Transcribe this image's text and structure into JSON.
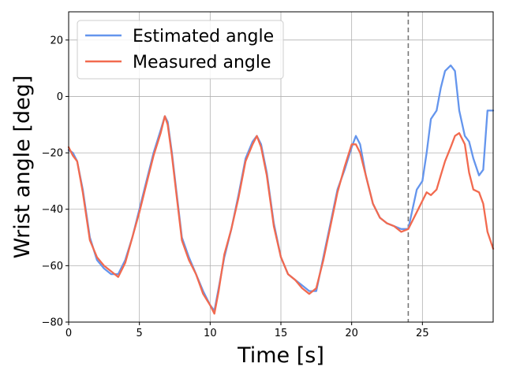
{
  "chart_data": {
    "type": "line",
    "xlabel": "Time [s]",
    "ylabel": "Wrist angle [deg]",
    "xlim": [
      0,
      30
    ],
    "ylim": [
      -80,
      30
    ],
    "xticks": [
      0,
      5,
      10,
      15,
      20,
      25
    ],
    "yticks": [
      -80,
      -60,
      -40,
      -20,
      0,
      20
    ],
    "grid": true,
    "legend_position": "top-left",
    "vline": {
      "x": 24,
      "style": "dashed",
      "color": "#777777"
    },
    "series": [
      {
        "name": "Estimated angle",
        "color": "#6495ED",
        "x": [
          0,
          0.3,
          0.6,
          1.0,
          1.5,
          2.0,
          2.5,
          3.0,
          3.5,
          4.0,
          4.5,
          5.0,
          5.5,
          6.0,
          6.5,
          6.8,
          7.0,
          7.3,
          7.6,
          8.0,
          8.5,
          9.0,
          9.5,
          10.0,
          10.3,
          10.6,
          11.0,
          11.5,
          12.0,
          12.5,
          13.0,
          13.3,
          13.6,
          14.0,
          14.5,
          15.0,
          15.5,
          16.0,
          16.5,
          17.0,
          17.5,
          18.0,
          18.5,
          19.0,
          19.5,
          20.0,
          20.3,
          20.6,
          21.0,
          21.5,
          22.0,
          22.5,
          23.0,
          23.5,
          24.0,
          24.3,
          24.6,
          25.0,
          25.3,
          25.6,
          26.0,
          26.3,
          26.6,
          27.0,
          27.3,
          27.6,
          28.0,
          28.3,
          28.6,
          29.0,
          29.3,
          29.6,
          30.0
        ],
        "y": [
          -19,
          -20,
          -23,
          -33,
          -50,
          -58,
          -61,
          -63,
          -63,
          -58,
          -50,
          -40,
          -30,
          -20,
          -12,
          -7,
          -9,
          -20,
          -33,
          -50,
          -57,
          -63,
          -69,
          -74,
          -76,
          -68,
          -57,
          -47,
          -35,
          -22,
          -16,
          -14,
          -17,
          -27,
          -45,
          -57,
          -63,
          -65,
          -67,
          -69,
          -69,
          -57,
          -45,
          -33,
          -26,
          -18,
          -14,
          -17,
          -28,
          -38,
          -43,
          -45,
          -46,
          -47,
          -47,
          -40,
          -33,
          -30,
          -20,
          -8,
          -5,
          3,
          9,
          11,
          9,
          -5,
          -14,
          -16,
          -22,
          -28,
          -26,
          -5,
          -5
        ]
      },
      {
        "name": "Measured angle",
        "color": "#F26A4F",
        "x": [
          0,
          0.3,
          0.6,
          1.0,
          1.5,
          2.0,
          2.5,
          3.0,
          3.5,
          4.0,
          4.5,
          5.0,
          5.5,
          6.0,
          6.5,
          6.8,
          7.0,
          7.3,
          7.6,
          8.0,
          8.5,
          9.0,
          9.5,
          10.0,
          10.3,
          10.6,
          11.0,
          11.5,
          12.0,
          12.5,
          13.0,
          13.3,
          13.6,
          14.0,
          14.5,
          15.0,
          15.5,
          16.0,
          16.5,
          17.0,
          17.5,
          18.0,
          18.5,
          19.0,
          19.5,
          20.0,
          20.3,
          20.6,
          21.0,
          21.5,
          22.0,
          22.5,
          23.0,
          23.5,
          24.0,
          24.3,
          24.6,
          25.0,
          25.3,
          25.6,
          26.0,
          26.3,
          26.6,
          27.0,
          27.3,
          27.6,
          28.0,
          28.3,
          28.6,
          29.0,
          29.3,
          29.6,
          30.0
        ],
        "y": [
          -18,
          -21,
          -23,
          -34,
          -51,
          -57,
          -60,
          -62,
          -64,
          -59,
          -50,
          -41,
          -31,
          -21,
          -13,
          -7,
          -10,
          -21,
          -34,
          -51,
          -58,
          -63,
          -70,
          -74,
          -77,
          -69,
          -56,
          -47,
          -36,
          -23,
          -17,
          -14,
          -18,
          -28,
          -46,
          -57,
          -63,
          -65,
          -68,
          -70,
          -68,
          -58,
          -46,
          -34,
          -25,
          -17,
          -17,
          -20,
          -28,
          -38,
          -43,
          -45,
          -46,
          -48,
          -47,
          -44,
          -41,
          -37,
          -34,
          -35,
          -33,
          -28,
          -23,
          -18,
          -14,
          -13,
          -17,
          -27,
          -33,
          -34,
          -38,
          -48,
          -54
        ]
      }
    ]
  }
}
